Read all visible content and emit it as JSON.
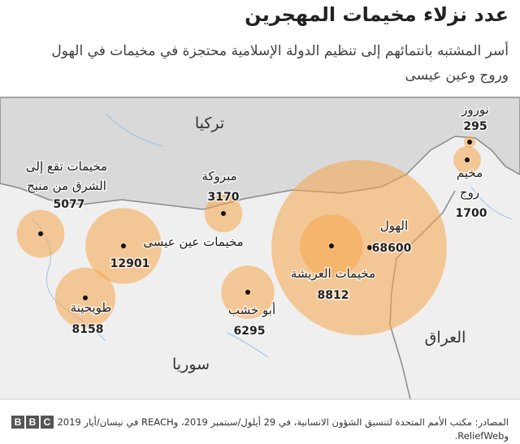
{
  "title": "عدد نزلاء مخيمات المهجرين",
  "subtitle": "أسر المشتبه بانتمائهم إلى تنظيم الدولة الإسلامية محتجزة في مخيمات في الهول وروج وعين عيسى",
  "countries": [
    "تركيا",
    "سوريا",
    "العراق"
  ],
  "camps": [
    {
      "name": [
        "نوروز"
      ],
      "value": 295
    },
    {
      "name": [
        "مخيم",
        "روج"
      ],
      "value": 1700
    },
    {
      "name": [
        "الهول"
      ],
      "value": 68600
    },
    {
      "name": [
        "مخيمات العريشة"
      ],
      "value": 8812
    },
    {
      "name": [
        "مبروكة"
      ],
      "value": 3170
    },
    {
      "name": [
        "مخيمات عين عيسى"
      ],
      "value": 12901
    },
    {
      "name": [
        "مخيمات تقع إلى",
        "الشرق من منبج"
      ],
      "value": 5077
    },
    {
      "name": [
        "طويحينة"
      ],
      "value": 8158
    },
    {
      "name": [
        "أبو خشب"
      ],
      "value": 6295
    }
  ],
  "source": "المصادر: مكتب الأمم المتحدة لتنسيق الشؤون الانسانية، في 29 أيلول/سبتمبر 2019، وREACH في نيسان/أيار 2019 وReliefWeb.",
  "logo": [
    "B",
    "B",
    "C"
  ]
}
